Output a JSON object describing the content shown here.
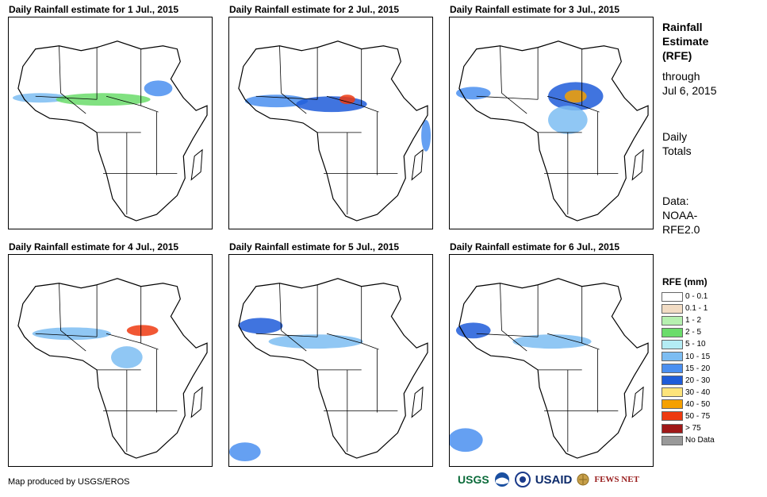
{
  "panels": [
    {
      "title": "Daily Rainfall estimate for 1 Jul., 2015"
    },
    {
      "title": "Daily Rainfall estimate for 2 Jul., 2015"
    },
    {
      "title": "Daily Rainfall estimate for 3 Jul., 2015"
    },
    {
      "title": "Daily Rainfall estimate for 4 Jul., 2015"
    },
    {
      "title": "Daily Rainfall estimate for 5 Jul., 2015"
    },
    {
      "title": "Daily Rainfall estimate for 6 Jul., 2015"
    }
  ],
  "side": {
    "heading_lines": [
      "Rainfall",
      "Estimate",
      "(RFE)"
    ],
    "through_lines": [
      "through",
      "Jul 6, 2015"
    ],
    "totals_lines": [
      "Daily",
      "Totals"
    ],
    "data_lines": [
      "Data:",
      "NOAA-",
      "RFE2.0"
    ]
  },
  "legend": {
    "title": "RFE (mm)",
    "items": [
      {
        "label": "0 - 0.1",
        "color": "#ffffff"
      },
      {
        "label": "0.1 - 1",
        "color": "#f2dcc4"
      },
      {
        "label": "1 - 2",
        "color": "#b6f0b0"
      },
      {
        "label": "2 - 5",
        "color": "#6bdc6b"
      },
      {
        "label": "5 - 10",
        "color": "#b4ecf4"
      },
      {
        "label": "10 - 15",
        "color": "#7dbdf2"
      },
      {
        "label": "15 - 20",
        "color": "#4a8ff0"
      },
      {
        "label": "20 - 30",
        "color": "#1e5cd9"
      },
      {
        "label": "30 - 40",
        "color": "#fde47a"
      },
      {
        "label": "40 - 50",
        "color": "#f5a000"
      },
      {
        "label": "50 - 75",
        "color": "#ee3a10"
      },
      {
        "label": "> 75",
        "color": "#a01818"
      },
      {
        "label": "No Data",
        "color": "#999999"
      }
    ]
  },
  "credit": "Map produced by USGS/EROS",
  "logos": [
    "USGS",
    "USAID",
    "FEWS NET"
  ]
}
